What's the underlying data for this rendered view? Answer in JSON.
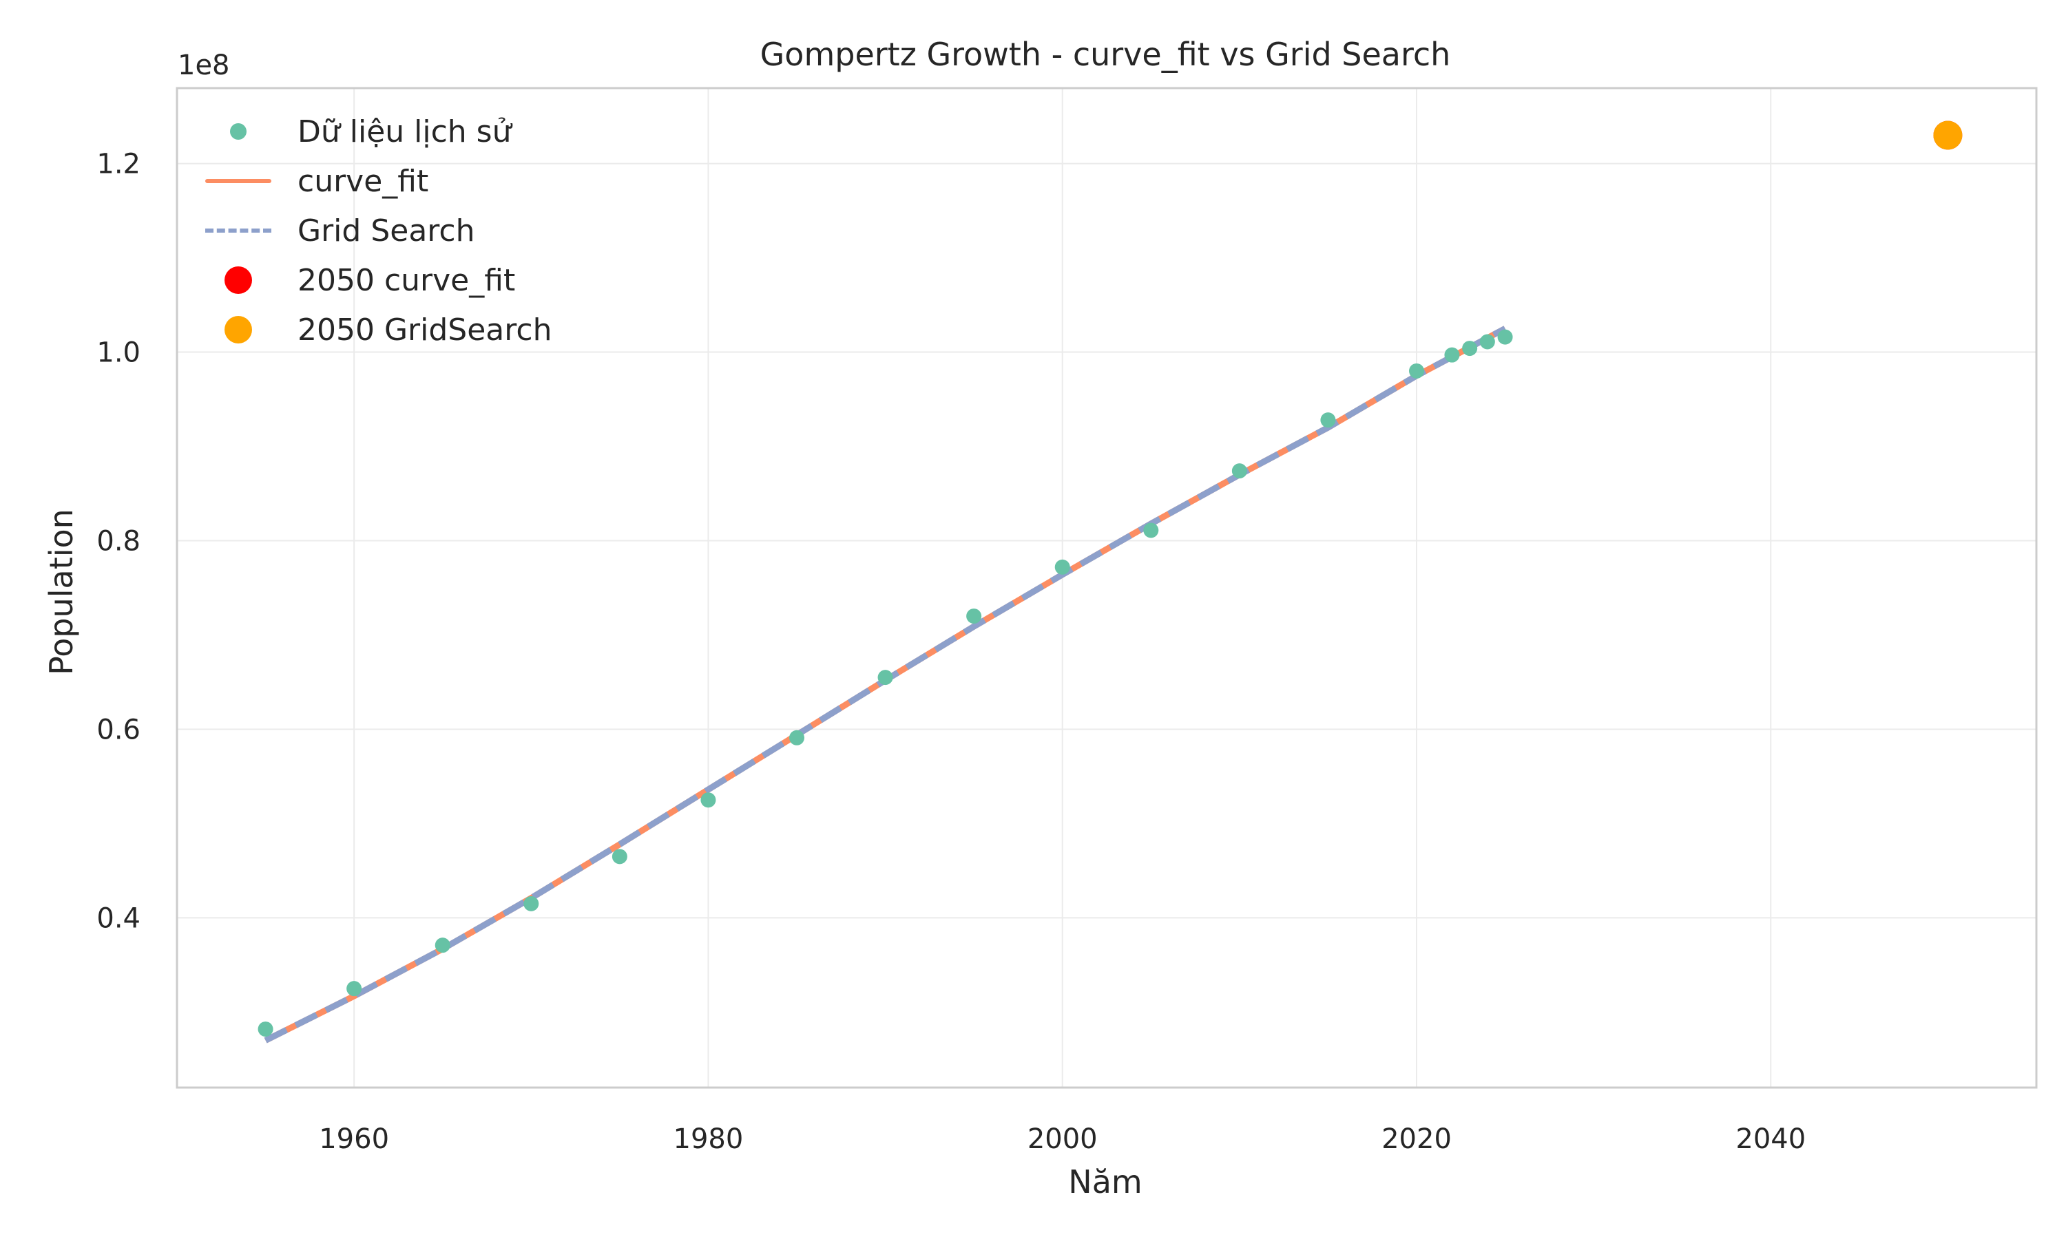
{
  "chart_data": {
    "type": "line",
    "title": "Gompertz Growth - curve_fit vs Grid Search",
    "xlabel": "Năm",
    "ylabel": "Population",
    "y_offset_label": "1e8",
    "xlim": [
      1950,
      2055
    ],
    "ylim": [
      0.22,
      1.28
    ],
    "y_scale_factor": 100000000,
    "xticks": [
      1960,
      1980,
      2000,
      2020,
      2040
    ],
    "yticks": [
      0.4,
      0.6,
      0.8,
      1.0,
      1.2
    ],
    "ytick_labels": [
      "0.4",
      "0.6",
      "0.8",
      "1.0",
      "1.2"
    ],
    "grid": true,
    "legend_position": "upper-left",
    "series": [
      {
        "name": "Dữ liệu lịch sử",
        "kind": "scatter",
        "color": "#66c2a5",
        "x": [
          1955,
          1960,
          1965,
          1970,
          1975,
          1980,
          1985,
          1990,
          1995,
          2000,
          2005,
          2010,
          2015,
          2020,
          2022,
          2023,
          2024,
          2025
        ],
        "y": [
          0.282,
          0.325,
          0.371,
          0.415,
          0.465,
          0.525,
          0.591,
          0.655,
          0.72,
          0.772,
          0.811,
          0.874,
          0.928,
          0.98,
          0.997,
          1.004,
          1.011,
          1.016
        ]
      },
      {
        "name": "curve_fit",
        "kind": "line",
        "color": "#fc8d62",
        "x": [
          1955,
          1960,
          1965,
          1970,
          1975,
          1980,
          1985,
          1990,
          1995,
          2000,
          2005,
          2010,
          2015,
          2020,
          2025
        ],
        "y": [
          0.27,
          0.317,
          0.367,
          0.421,
          0.478,
          0.536,
          0.594,
          0.652,
          0.709,
          0.764,
          0.818,
          0.87,
          0.92,
          0.975,
          1.025
        ]
      },
      {
        "name": "Grid Search",
        "kind": "dashed-line",
        "color": "#8da0cb",
        "x": [
          1955,
          1960,
          1965,
          1970,
          1975,
          1980,
          1985,
          1990,
          1995,
          2000,
          2005,
          2010,
          2015,
          2020,
          2025
        ],
        "y": [
          0.27,
          0.317,
          0.367,
          0.421,
          0.478,
          0.536,
          0.594,
          0.652,
          0.709,
          0.764,
          0.818,
          0.87,
          0.92,
          0.975,
          1.025
        ]
      },
      {
        "name": "2050 curve_fit",
        "kind": "point",
        "color": "#ff0000",
        "x": [
          2050
        ],
        "y": [
          1.23
        ]
      },
      {
        "name": "2050 GridSearch",
        "kind": "point",
        "color": "#ffa500",
        "x": [
          2050
        ],
        "y": [
          1.23
        ]
      }
    ]
  }
}
